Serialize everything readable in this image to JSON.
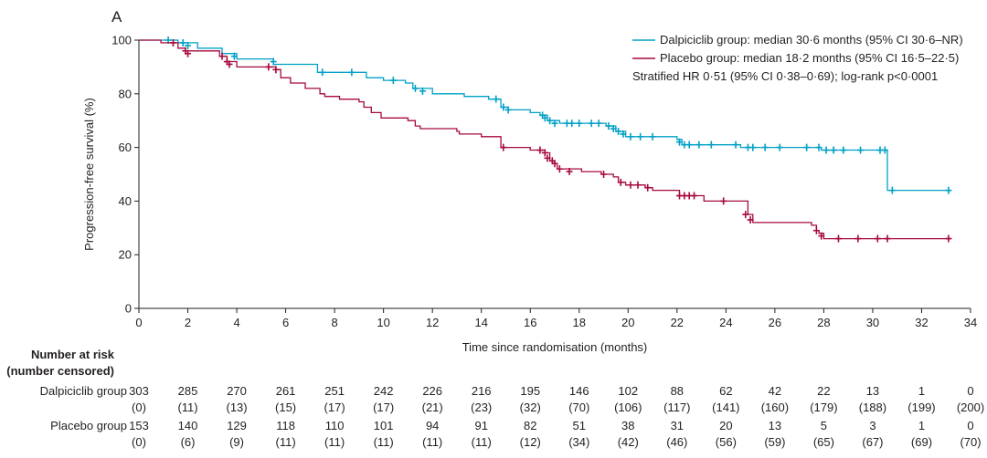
{
  "panel_label": "A",
  "chart_data": {
    "type": "line",
    "title": "",
    "xlabel": "Time since randomisation (months)",
    "ylabel": "Progression-free survival (%)",
    "xlim": [
      0,
      34
    ],
    "ylim": [
      0,
      100
    ],
    "xticks": [
      "0",
      "2",
      "4",
      "6",
      "8",
      "10",
      "12",
      "14",
      "16",
      "18",
      "20",
      "22",
      "24",
      "26",
      "28",
      "30",
      "32",
      "34"
    ],
    "yticks": [
      "0",
      "20",
      "40",
      "60",
      "80",
      "100"
    ],
    "grid": false,
    "legend_position": "top-right",
    "legend": [
      {
        "label": "Dalpiciclib group: median 30·6 months (95% CI 30·6–NR)",
        "color": "#00a0c6"
      },
      {
        "label": "Placebo group: median 18·2 months (95% CI 16·5–22·5)",
        "color": "#a6093d"
      }
    ],
    "annotation": "Stratified HR 0·51 (95% CI 0·38–0·69); log-rank p<0·0001",
    "series": [
      {
        "name": "Dalpiciclib group",
        "color": "#00a0c6",
        "step": [
          [
            0,
            100
          ],
          [
            1.2,
            100
          ],
          [
            1.6,
            99
          ],
          [
            2.4,
            97
          ],
          [
            3.4,
            95
          ],
          [
            4,
            93
          ],
          [
            5.5,
            91
          ],
          [
            7.3,
            88
          ],
          [
            8.4,
            88
          ],
          [
            9.3,
            86
          ],
          [
            10,
            85
          ],
          [
            10.9,
            84
          ],
          [
            11.2,
            82
          ],
          [
            12,
            80
          ],
          [
            13.3,
            79
          ],
          [
            14.3,
            78
          ],
          [
            14.8,
            75
          ],
          [
            15.1,
            74
          ],
          [
            16,
            73
          ],
          [
            16.4,
            72
          ],
          [
            16.7,
            70
          ],
          [
            17.2,
            69
          ],
          [
            18.3,
            69
          ],
          [
            19.1,
            68
          ],
          [
            19.5,
            66
          ],
          [
            19.9,
            64
          ],
          [
            21,
            64
          ],
          [
            22,
            63
          ],
          [
            22.2,
            61
          ],
          [
            23,
            61
          ],
          [
            24,
            61
          ],
          [
            24.6,
            60
          ],
          [
            27.6,
            60
          ],
          [
            27.9,
            59
          ],
          [
            30.5,
            59
          ],
          [
            30.6,
            44
          ],
          [
            33.1,
            44
          ]
        ],
        "censor": [
          [
            1.2,
            100
          ],
          [
            1.8,
            99
          ],
          [
            2.0,
            98
          ],
          [
            3.9,
            94
          ],
          [
            5.5,
            92
          ],
          [
            7.5,
            88
          ],
          [
            8.7,
            88
          ],
          [
            10.4,
            85
          ],
          [
            11.3,
            82
          ],
          [
            11.6,
            81
          ],
          [
            14.6,
            78
          ],
          [
            14.9,
            75
          ],
          [
            15.1,
            74
          ],
          [
            16.5,
            72
          ],
          [
            16.6,
            71
          ],
          [
            16.8,
            70
          ],
          [
            17.0,
            69
          ],
          [
            17.5,
            69
          ],
          [
            17.7,
            69
          ],
          [
            18.0,
            69
          ],
          [
            18.5,
            69
          ],
          [
            18.8,
            69
          ],
          [
            19.2,
            68
          ],
          [
            19.4,
            67
          ],
          [
            19.6,
            66
          ],
          [
            19.8,
            65
          ],
          [
            20.1,
            64
          ],
          [
            20.5,
            64
          ],
          [
            21.0,
            64
          ],
          [
            22.1,
            62
          ],
          [
            22.3,
            61
          ],
          [
            22.5,
            61
          ],
          [
            22.9,
            61
          ],
          [
            23.4,
            61
          ],
          [
            24.4,
            61
          ],
          [
            24.9,
            60
          ],
          [
            25.1,
            60
          ],
          [
            25.6,
            60
          ],
          [
            26.2,
            60
          ],
          [
            27.3,
            60
          ],
          [
            27.8,
            60
          ],
          [
            28.1,
            59
          ],
          [
            28.4,
            59
          ],
          [
            28.8,
            59
          ],
          [
            29.5,
            59
          ],
          [
            30.3,
            59
          ],
          [
            30.5,
            59
          ],
          [
            30.8,
            44
          ],
          [
            33.1,
            44
          ]
        ]
      },
      {
        "name": "Placebo group",
        "color": "#a6093d",
        "step": [
          [
            0,
            100
          ],
          [
            0.9,
            99
          ],
          [
            1.6,
            97
          ],
          [
            1.9,
            96
          ],
          [
            3.3,
            94
          ],
          [
            3.6,
            92
          ],
          [
            4,
            90
          ],
          [
            5.6,
            89
          ],
          [
            5.8,
            86
          ],
          [
            6.2,
            84
          ],
          [
            6.8,
            82
          ],
          [
            7.4,
            80
          ],
          [
            7.6,
            79
          ],
          [
            8.2,
            78
          ],
          [
            9,
            77
          ],
          [
            9.2,
            75
          ],
          [
            9.5,
            73
          ],
          [
            9.9,
            71
          ],
          [
            11,
            70
          ],
          [
            11.3,
            68
          ],
          [
            11.5,
            67
          ],
          [
            13,
            66
          ],
          [
            13.1,
            65
          ],
          [
            14,
            64
          ],
          [
            14.6,
            64
          ],
          [
            14.8,
            60
          ],
          [
            16,
            59
          ],
          [
            16.6,
            58
          ],
          [
            16.8,
            55
          ],
          [
            17,
            54
          ],
          [
            17.1,
            52
          ],
          [
            18.1,
            51
          ],
          [
            18.9,
            50
          ],
          [
            19.4,
            49
          ],
          [
            19.6,
            47
          ],
          [
            19.9,
            46
          ],
          [
            20.7,
            45
          ],
          [
            21,
            44
          ],
          [
            22.1,
            42
          ],
          [
            22.9,
            42
          ],
          [
            23.1,
            40
          ],
          [
            24.7,
            40
          ],
          [
            24.9,
            35
          ],
          [
            25.1,
            32
          ],
          [
            27.5,
            31
          ],
          [
            27.7,
            29
          ],
          [
            27.8,
            28
          ],
          [
            28,
            26
          ],
          [
            33.1,
            26
          ]
        ],
        "censor": [
          [
            1.4,
            99
          ],
          [
            1.9,
            96
          ],
          [
            2.0,
            95
          ],
          [
            3.4,
            94
          ],
          [
            3.6,
            92
          ],
          [
            3.7,
            91
          ],
          [
            5.3,
            90
          ],
          [
            5.6,
            89
          ],
          [
            14.9,
            60
          ],
          [
            16.4,
            59
          ],
          [
            16.6,
            58
          ],
          [
            16.7,
            56
          ],
          [
            16.9,
            55
          ],
          [
            17.0,
            54
          ],
          [
            17.2,
            52
          ],
          [
            17.6,
            51
          ],
          [
            19.0,
            50
          ],
          [
            19.7,
            47
          ],
          [
            20.1,
            46
          ],
          [
            20.4,
            46
          ],
          [
            20.8,
            45
          ],
          [
            22.1,
            42
          ],
          [
            22.3,
            42
          ],
          [
            22.5,
            42
          ],
          [
            22.7,
            42
          ],
          [
            23.9,
            40
          ],
          [
            24.8,
            35
          ],
          [
            25.0,
            33
          ],
          [
            27.7,
            29
          ],
          [
            27.9,
            27
          ],
          [
            28.6,
            26
          ],
          [
            29.4,
            26
          ],
          [
            30.2,
            26
          ],
          [
            30.6,
            26
          ],
          [
            33.1,
            26
          ]
        ]
      }
    ]
  },
  "risk_table": {
    "header_line1": "Number at risk",
    "header_line2": "(number censored)",
    "groups": [
      {
        "name": "Dalpiciclib group",
        "at_risk": [
          "303",
          "285",
          "270",
          "261",
          "251",
          "242",
          "226",
          "216",
          "195",
          "146",
          "102",
          "88",
          "62",
          "42",
          "22",
          "13",
          "1",
          "0"
        ],
        "censored": [
          "(0)",
          "(11)",
          "(13)",
          "(15)",
          "(17)",
          "(17)",
          "(21)",
          "(23)",
          "(32)",
          "(70)",
          "(106)",
          "(117)",
          "(141)",
          "(160)",
          "(179)",
          "(188)",
          "(199)",
          "(200)"
        ]
      },
      {
        "name": "Placebo group",
        "at_risk": [
          "153",
          "140",
          "129",
          "118",
          "110",
          "101",
          "94",
          "91",
          "82",
          "51",
          "38",
          "31",
          "20",
          "13",
          "5",
          "3",
          "1",
          "0"
        ],
        "censored": [
          "(0)",
          "(6)",
          "(9)",
          "(11)",
          "(11)",
          "(11)",
          "(11)",
          "(11)",
          "(12)",
          "(34)",
          "(42)",
          "(46)",
          "(56)",
          "(59)",
          "(65)",
          "(67)",
          "(69)",
          "(70)"
        ]
      }
    ]
  }
}
